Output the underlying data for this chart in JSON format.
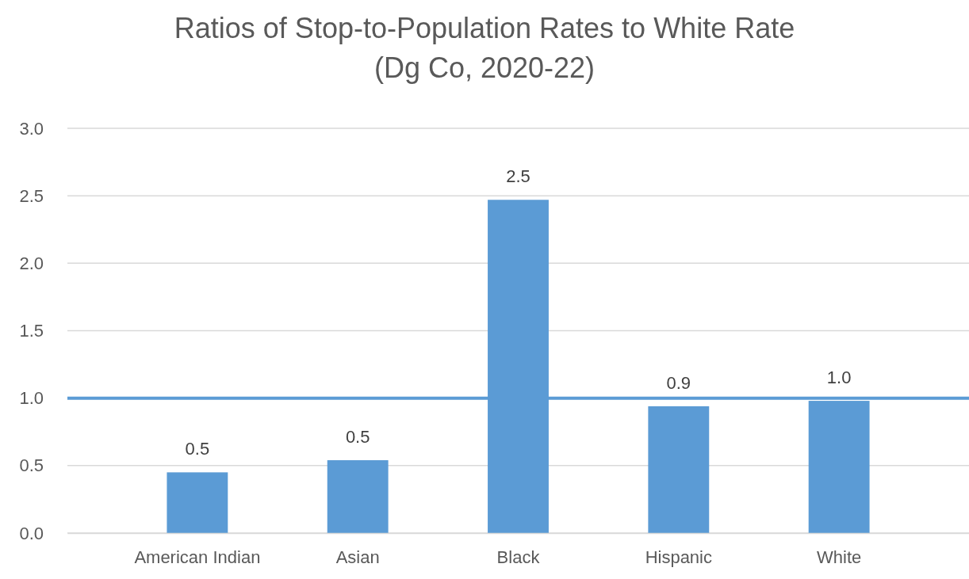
{
  "chart_data": {
    "type": "bar",
    "title": "Ratios of Stop-to-Population Rates to White Rate",
    "subtitle": "(Dg Co, 2020-22)",
    "categories": [
      "American Indian",
      "Asian",
      "Black",
      "Hispanic",
      "White"
    ],
    "values": [
      0.45,
      0.54,
      2.47,
      0.94,
      0.98
    ],
    "color": "#5b9bd5",
    "value_labels": [
      "0.5",
      "0.5",
      "2.5",
      "0.9",
      "1.0"
    ],
    "ylim": [
      0,
      3
    ],
    "yticks": [
      {
        "value": 0,
        "label": "0.0"
      },
      {
        "value": 0.5,
        "label": "0.5"
      },
      {
        "value": 1,
        "label": "1.0"
      },
      {
        "value": 1.5,
        "label": "1.5"
      },
      {
        "value": 2,
        "label": "2.0"
      },
      {
        "value": 2.5,
        "label": "2.5"
      },
      {
        "value": 3,
        "label": "3.0"
      }
    ],
    "grid": "y",
    "ref_lines": [
      {
        "axis": "y",
        "value": 1,
        "color": "#5b9bd5"
      }
    ]
  }
}
